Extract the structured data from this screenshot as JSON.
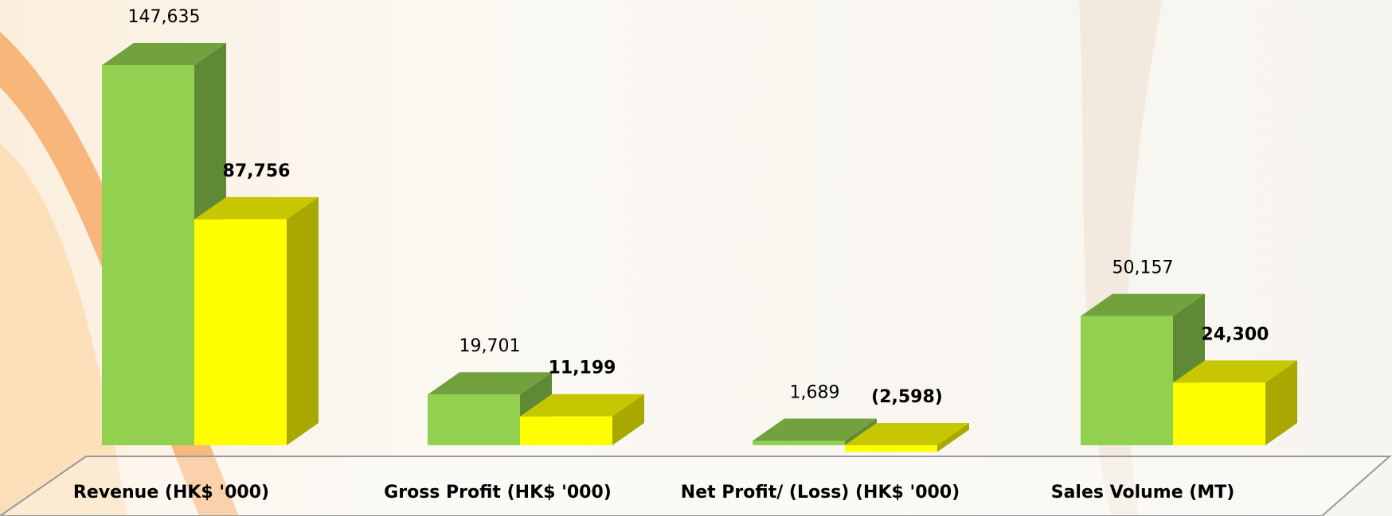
{
  "chart_data": {
    "type": "bar3d",
    "categories": [
      "Revenue (HK$ '000)",
      "Gross Profit (HK$ '000)",
      "Net Profit/ (Loss) (HK$ '000)",
      "Sales Volume (MT)"
    ],
    "series": [
      {
        "color": "#92d050",
        "values": [
          147635,
          19701,
          1689,
          50157
        ],
        "value_labels": [
          "147,635",
          "19,701",
          "1,689",
          "50,157"
        ]
      },
      {
        "color": "#ffff00",
        "values": [
          87756,
          11199,
          -2598,
          24300
        ],
        "value_labels": [
          "87,756",
          "11,199",
          "(2,598)",
          "24,300"
        ]
      }
    ]
  }
}
